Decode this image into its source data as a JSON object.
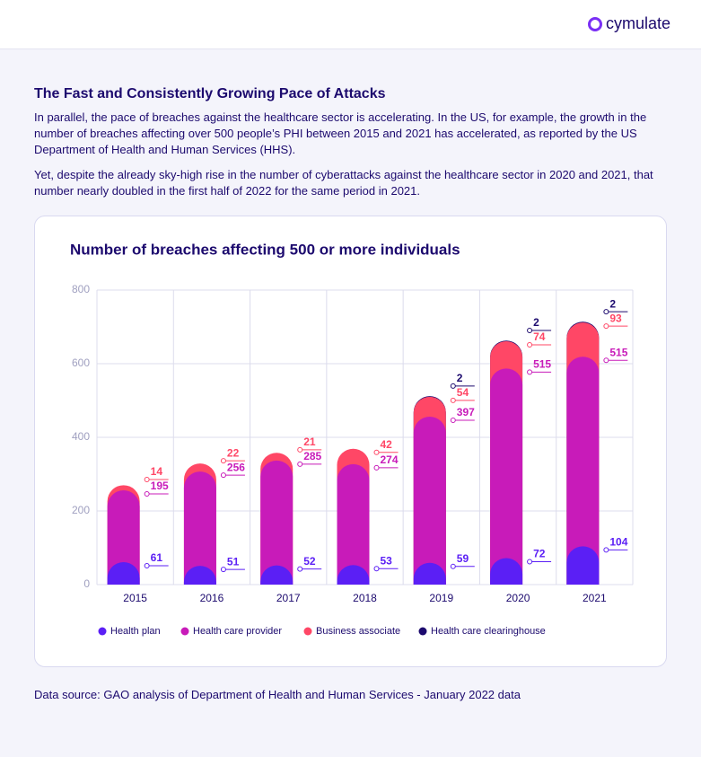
{
  "header": {
    "logo": "cymulate"
  },
  "section": {
    "title": "The Fast and Consistently Growing Pace of Attacks",
    "paragraphs": [
      "In parallel, the pace of breaches against the healthcare sector is accelerating. In the US, for example, the growth in the number of breaches affecting over 500 people’s PHI between 2015 and 2021 has accelerated, as reported by the US Department of Health and Human Services (HHS).",
      "Yet, despite the already sky-high rise in the number of cyberattacks against the healthcare sector in 2020 and 2021, that number nearly doubled in the first half of 2022 for the same period in 2021."
    ]
  },
  "chart_data": {
    "type": "stacked_bar",
    "title": "Number of breaches affecting 500 or more individuals",
    "categories": [
      "2015",
      "2016",
      "2017",
      "2018",
      "2019",
      "2020",
      "2021"
    ],
    "series": [
      {
        "name": "Health plan",
        "color": "#5b1ff5",
        "values": [
          61,
          51,
          52,
          53,
          59,
          72,
          104
        ]
      },
      {
        "name": "Health care provider",
        "color": "#c81bb9",
        "values": [
          195,
          256,
          285,
          274,
          397,
          515,
          515
        ]
      },
      {
        "name": "Business associate",
        "color": "#ff4766",
        "values": [
          14,
          22,
          21,
          42,
          54,
          74,
          93
        ]
      },
      {
        "name": "Health care clearinghouse",
        "color": "#1c0a6e",
        "values": [
          null,
          null,
          null,
          null,
          2,
          2,
          2
        ]
      }
    ],
    "ylim": [
      0,
      800
    ],
    "yticks": [
      0,
      200,
      400,
      600,
      800
    ],
    "grid": true,
    "legend": "bottom"
  },
  "source": "Data source: GAO analysis of Department of Health and Human Services - January 2022 data"
}
